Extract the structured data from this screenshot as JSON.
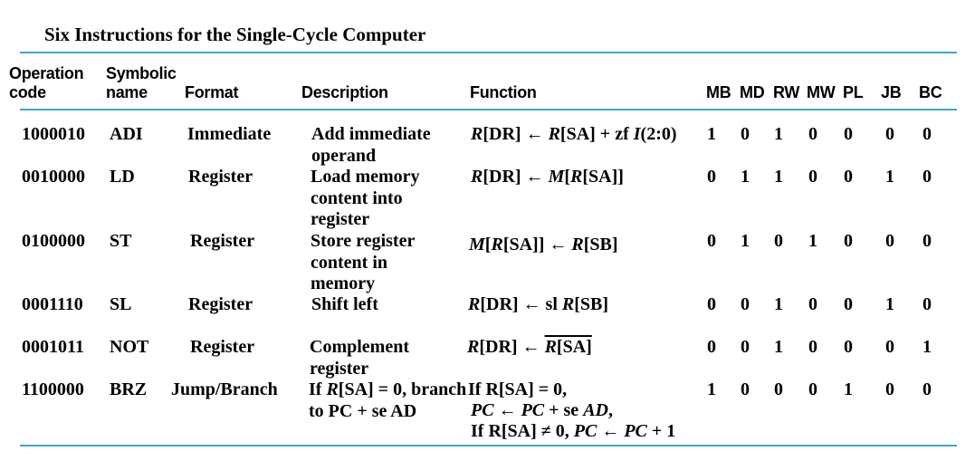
{
  "title": "Six Instructions for the Single-Cycle Computer",
  "headers": {
    "opcode": [
      "Operation",
      "code"
    ],
    "symbolic": [
      "Symbolic",
      "name"
    ],
    "format": "Format",
    "description": "Description",
    "function": "Function",
    "controls": [
      "MB",
      "MD",
      "RW",
      "MW",
      "PL",
      "JB",
      "BC"
    ]
  },
  "rows": [
    {
      "opcode": "1000010",
      "name": "ADI",
      "format": "Immediate",
      "description": [
        "Add immediate",
        "operand"
      ],
      "controls": [
        "1",
        "0",
        "1",
        "0",
        "0",
        "0",
        "0"
      ],
      "function": [
        "R[DR] ← R[SA] + zf I(2:0)"
      ]
    },
    {
      "opcode": "0010000",
      "name": "LD",
      "format": "Register",
      "description": [
        "Load memory",
        "content into",
        "register"
      ],
      "controls": [
        "0",
        "1",
        "1",
        "0",
        "0",
        "1",
        "0"
      ],
      "function": [
        "R[DR] ← M[R[SA]]"
      ]
    },
    {
      "opcode": "0100000",
      "name": "ST",
      "format": "Register",
      "description": [
        "Store register",
        "content in",
        "memory"
      ],
      "controls": [
        "0",
        "1",
        "0",
        "1",
        "0",
        "0",
        "0"
      ],
      "function": [
        "M[R[SA]] ← R[SB]"
      ]
    },
    {
      "opcode": "0001110",
      "name": "SL",
      "format": "Register",
      "description": [
        "Shift left"
      ],
      "controls": [
        "0",
        "0",
        "1",
        "0",
        "0",
        "1",
        "0"
      ],
      "function": [
        "R[DR] ← sl R[SB]"
      ]
    },
    {
      "opcode": "0001011",
      "name": "NOT",
      "format": "Register",
      "description": [
        "Complement",
        "register"
      ],
      "controls": [
        "0",
        "0",
        "1",
        "0",
        "0",
        "0",
        "1"
      ],
      "function": [
        "R[DR] ← R[SA]"
      ]
    },
    {
      "opcode": "1100000",
      "name": "BRZ",
      "format": "Jump/Branch",
      "description": [
        "If R[SA] = 0, branch",
        "to PC + se AD"
      ],
      "controls": [
        "1",
        "0",
        "0",
        "0",
        "1",
        "0",
        "0"
      ],
      "function": [
        "If R[SA] = 0,",
        "PC ← PC + se AD,",
        "If R[SA] ≠ 0, PC ← PC + 1"
      ]
    }
  ]
}
